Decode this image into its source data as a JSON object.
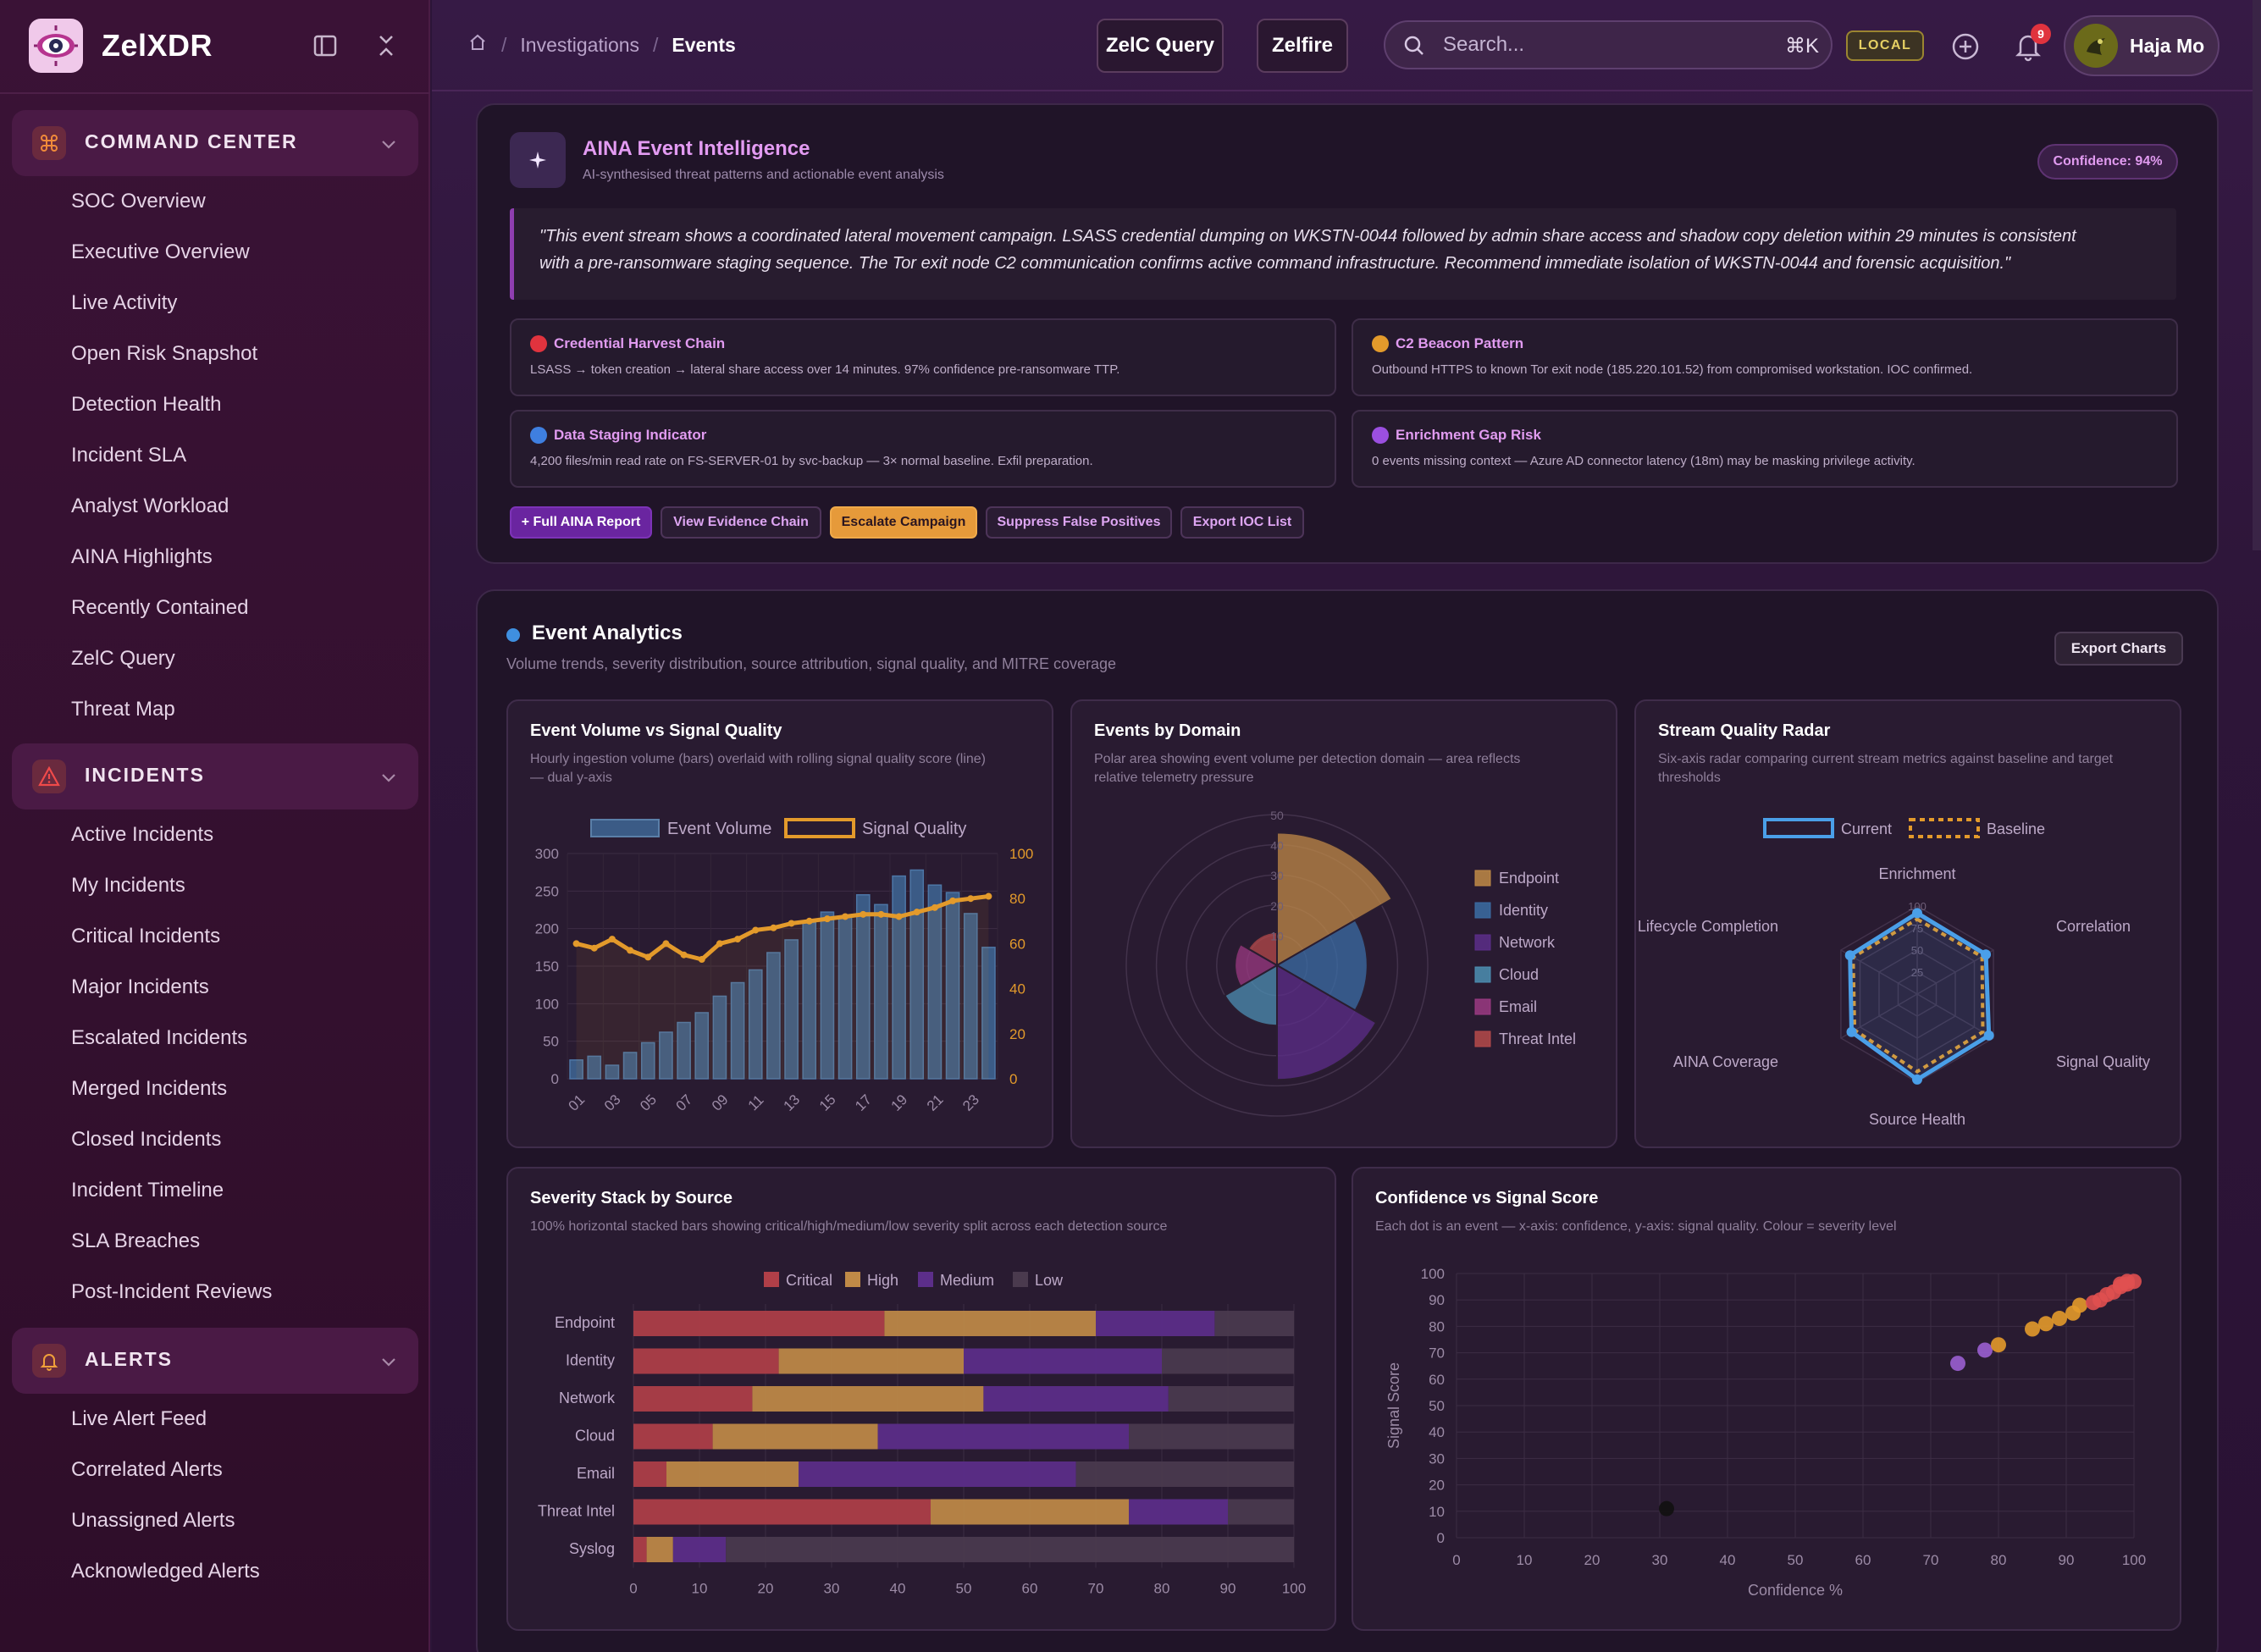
{
  "app": {
    "name": "ZelXDR"
  },
  "sidebar": {
    "groups": [
      {
        "label": "COMMAND CENTER",
        "icon": "command-icon",
        "items": [
          "SOC Overview",
          "Executive Overview",
          "Live Activity",
          "Open Risk Snapshot",
          "Detection Health",
          "Incident SLA",
          "Analyst Workload",
          "AINA Highlights",
          "Recently Contained",
          "ZelC Query",
          "Threat Map"
        ]
      },
      {
        "label": "INCIDENTS",
        "icon": "warning-icon",
        "items": [
          "Active Incidents",
          "My Incidents",
          "Critical Incidents",
          "Major Incidents",
          "Escalated Incidents",
          "Merged Incidents",
          "Closed Incidents",
          "Incident Timeline",
          "SLA Breaches",
          "Post-Incident Reviews"
        ]
      },
      {
        "label": "ALERTS",
        "icon": "bell-icon",
        "items": [
          "Live Alert Feed",
          "Correlated Alerts",
          "Unassigned Alerts",
          "Acknowledged Alerts"
        ]
      }
    ]
  },
  "topbar": {
    "breadcrumb": [
      "Investigations",
      "Events"
    ],
    "zelc_query": "ZelC Query",
    "zelfire": "Zelfire",
    "search_placeholder": "Search...",
    "search_shortcut": "⌘K",
    "env_badge": "LOCAL",
    "notification_count": "9",
    "user_name": "Haja Mo"
  },
  "aina": {
    "title": "AINA Event Intelligence",
    "subtitle": "AI-synthesised threat patterns and actionable event analysis",
    "confidence": "Confidence: 94%",
    "quote_line1": "\"This event stream shows a coordinated lateral movement campaign. LSASS credential dumping on WKSTN-0044 followed by admin share access and shadow copy deletion within 29 minutes is consistent",
    "quote_line2": "with a pre-ransomware staging sequence. The Tor exit node C2 communication confirms active command infrastructure. Recommend immediate isolation of WKSTN-0044 and forensic acquisition.\"",
    "cards": [
      {
        "title": "Credential Harvest Chain",
        "desc": "LSASS → token creation → lateral share access over 14 minutes. 97% confidence pre-ransomware TTP.",
        "color": "#e0333e"
      },
      {
        "title": "C2 Beacon Pattern",
        "desc": "Outbound HTTPS to known Tor exit node (185.220.101.52) from compromised workstation. IOC confirmed.",
        "color": "#e39a2b"
      },
      {
        "title": "Data Staging Indicator",
        "desc": "4,200 files/min read rate on FS-SERVER-01 by svc-backup — 3× normal baseline. Exfil preparation.",
        "color": "#3f7fe0"
      },
      {
        "title": "Enrichment Gap Risk",
        "desc": "0 events missing context — Azure AD connector latency (18m) may be masking privilege activity.",
        "color": "#9b4fe0"
      }
    ],
    "actions": [
      "+ Full AINA Report",
      "View Evidence Chain",
      "Escalate Campaign",
      "Suppress False Positives",
      "Export IOC List"
    ]
  },
  "analytics": {
    "title": "Event Analytics",
    "subtitle": "Volume trends, severity distribution, source attribution, signal quality, and MITRE coverage",
    "export": "Export Charts",
    "volume_title": "Event Volume vs Signal Quality",
    "volume_sub1": "Hourly ingestion volume (bars) overlaid with rolling signal quality score (line)",
    "volume_sub2": "— dual y-axis",
    "domain_title": "Events by Domain",
    "domain_sub1": "Polar area showing event volume per detection domain — area reflects",
    "domain_sub2": "relative telemetry pressure",
    "radar_title": "Stream Quality Radar",
    "radar_sub1": "Six-axis radar comparing current stream metrics against baseline and target",
    "radar_sub2": "thresholds",
    "severity_title": "Severity Stack by Source",
    "severity_sub": "100% horizontal stacked bars showing critical/high/medium/low severity split across each detection source",
    "scatter_title": "Confidence vs Signal Score",
    "scatter_sub": "Each dot is an event — x-axis: confidence, y-axis: signal quality. Colour = severity level"
  },
  "chart_data": [
    {
      "type": "bar",
      "title": "Event Volume vs Signal Quality",
      "series": [
        {
          "name": "Event Volume",
          "values": [
            25,
            30,
            18,
            35,
            48,
            62,
            75,
            88,
            110,
            128,
            145,
            168,
            185,
            208,
            222,
            215,
            245,
            232,
            270,
            278,
            258,
            248,
            220,
            175
          ]
        },
        {
          "name": "Signal Quality",
          "values": [
            60,
            58,
            62,
            57,
            54,
            60,
            55,
            53,
            60,
            62,
            66,
            67,
            69,
            70,
            71,
            72,
            73,
            73,
            72,
            74,
            76,
            79,
            80,
            81
          ]
        }
      ],
      "x": [
        "01",
        "02",
        "03",
        "04",
        "05",
        "06",
        "07",
        "08",
        "09",
        "10",
        "11",
        "12",
        "13",
        "14",
        "15",
        "16",
        "17",
        "18",
        "19",
        "20",
        "21",
        "22",
        "23",
        "24"
      ],
      "xticks": [
        "01",
        "03",
        "05",
        "07",
        "09",
        "11",
        "13",
        "15",
        "17",
        "19",
        "21",
        "23"
      ],
      "ylim": [
        0,
        300
      ],
      "y2lim": [
        0,
        100
      ]
    },
    {
      "type": "pie",
      "title": "Events by Domain",
      "categories": [
        "Endpoint",
        "Identity",
        "Network",
        "Cloud",
        "Email",
        "Threat Intel"
      ],
      "values": [
        44,
        30,
        38,
        20,
        14,
        11
      ],
      "colors": [
        "#c08a47",
        "#3b6da5",
        "#5c2e8a",
        "#4c8fb3",
        "#9b3a82",
        "#b54a4a"
      ],
      "rmax": 50,
      "rticks": [
        10,
        20,
        30,
        40,
        50
      ]
    },
    {
      "type": "radar",
      "title": "Stream Quality Radar",
      "categories": [
        "Enrichment",
        "Correlation",
        "Signal Quality",
        "Source Health",
        "AINA Coverage",
        "Lifecycle Completion"
      ],
      "series": [
        {
          "name": "Current",
          "values": [
            92,
            90,
            94,
            97,
            86,
            88
          ],
          "color": "#4a9fe8"
        },
        {
          "name": "Baseline",
          "values": [
            85,
            85,
            86,
            88,
            82,
            84
          ],
          "color": "#e39a2b"
        }
      ],
      "rticks": [
        25,
        50,
        75,
        100
      ]
    },
    {
      "type": "bar",
      "title": "Severity Stack by Source",
      "categories": [
        "Endpoint",
        "Identity",
        "Network",
        "Cloud",
        "Email",
        "Threat Intel",
        "Syslog"
      ],
      "series": [
        {
          "name": "Critical",
          "values": [
            38,
            22,
            18,
            12,
            5,
            45,
            2
          ],
          "color": "#b03f48"
        },
        {
          "name": "High",
          "values": [
            32,
            28,
            35,
            25,
            20,
            30,
            4
          ],
          "color": "#c08a47"
        },
        {
          "name": "Medium",
          "values": [
            18,
            30,
            28,
            38,
            42,
            15,
            8
          ],
          "color": "#5c2e8a"
        },
        {
          "name": "Low",
          "values": [
            12,
            20,
            19,
            25,
            33,
            10,
            86
          ],
          "color": "#4a3a4e"
        }
      ],
      "xlim": [
        0,
        100
      ],
      "xticks": [
        0,
        10,
        20,
        30,
        40,
        50,
        60,
        70,
        80,
        90,
        100
      ]
    },
    {
      "type": "scatter",
      "title": "Confidence vs Signal Score",
      "xlabel": "Confidence %",
      "ylabel": "Signal Score",
      "xlim": [
        0,
        100
      ],
      "ylim": [
        0,
        100
      ],
      "points": [
        {
          "x": 31,
          "y": 11,
          "c": "#111111"
        },
        {
          "x": 74,
          "y": 66,
          "c": "#9a5fd1"
        },
        {
          "x": 78,
          "y": 71,
          "c": "#9a5fd1"
        },
        {
          "x": 80,
          "y": 73,
          "c": "#e39a2b"
        },
        {
          "x": 85,
          "y": 79,
          "c": "#e39a2b"
        },
        {
          "x": 87,
          "y": 81,
          "c": "#e39a2b"
        },
        {
          "x": 89,
          "y": 83,
          "c": "#e39a2b"
        },
        {
          "x": 91,
          "y": 85,
          "c": "#e39a2b"
        },
        {
          "x": 92,
          "y": 88,
          "c": "#e39a2b"
        },
        {
          "x": 94,
          "y": 89,
          "c": "#e05050"
        },
        {
          "x": 95,
          "y": 90,
          "c": "#e05050"
        },
        {
          "x": 96,
          "y": 92,
          "c": "#e05050"
        },
        {
          "x": 97,
          "y": 93,
          "c": "#e05050"
        },
        {
          "x": 98,
          "y": 95,
          "c": "#e05050"
        },
        {
          "x": 99,
          "y": 96,
          "c": "#e05050"
        },
        {
          "x": 100,
          "y": 97,
          "c": "#e05050"
        },
        {
          "x": 98,
          "y": 96,
          "c": "#e05050"
        },
        {
          "x": 99,
          "y": 97,
          "c": "#e05050"
        }
      ]
    }
  ]
}
